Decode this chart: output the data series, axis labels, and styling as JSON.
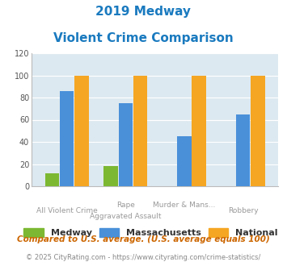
{
  "title_line1": "2019 Medway",
  "title_line2": "Violent Crime Comparison",
  "title_color": "#1a7abf",
  "cat_labels_top": [
    "",
    "Rape",
    "Murder & Mans...",
    ""
  ],
  "cat_labels_bot": [
    "All Violent Crime",
    "Aggravated Assault",
    "",
    "Robbery"
  ],
  "medway": [
    12,
    18,
    0,
    0
  ],
  "massachusetts": [
    86,
    75,
    45,
    65
  ],
  "national": [
    100,
    100,
    100,
    100
  ],
  "medway_color": "#7cb832",
  "massachusetts_color": "#4a90d9",
  "national_color": "#f5a623",
  "ylim": [
    0,
    120
  ],
  "yticks": [
    0,
    20,
    40,
    60,
    80,
    100,
    120
  ],
  "plot_bg": "#dde9f0",
  "footnote1": "Compared to U.S. average. (U.S. average equals 100)",
  "footnote2": "© 2025 CityRating.com - https://www.cityrating.com/crime-statistics/",
  "footnote1_color": "#cc6600",
  "footnote2_color": "#888888"
}
